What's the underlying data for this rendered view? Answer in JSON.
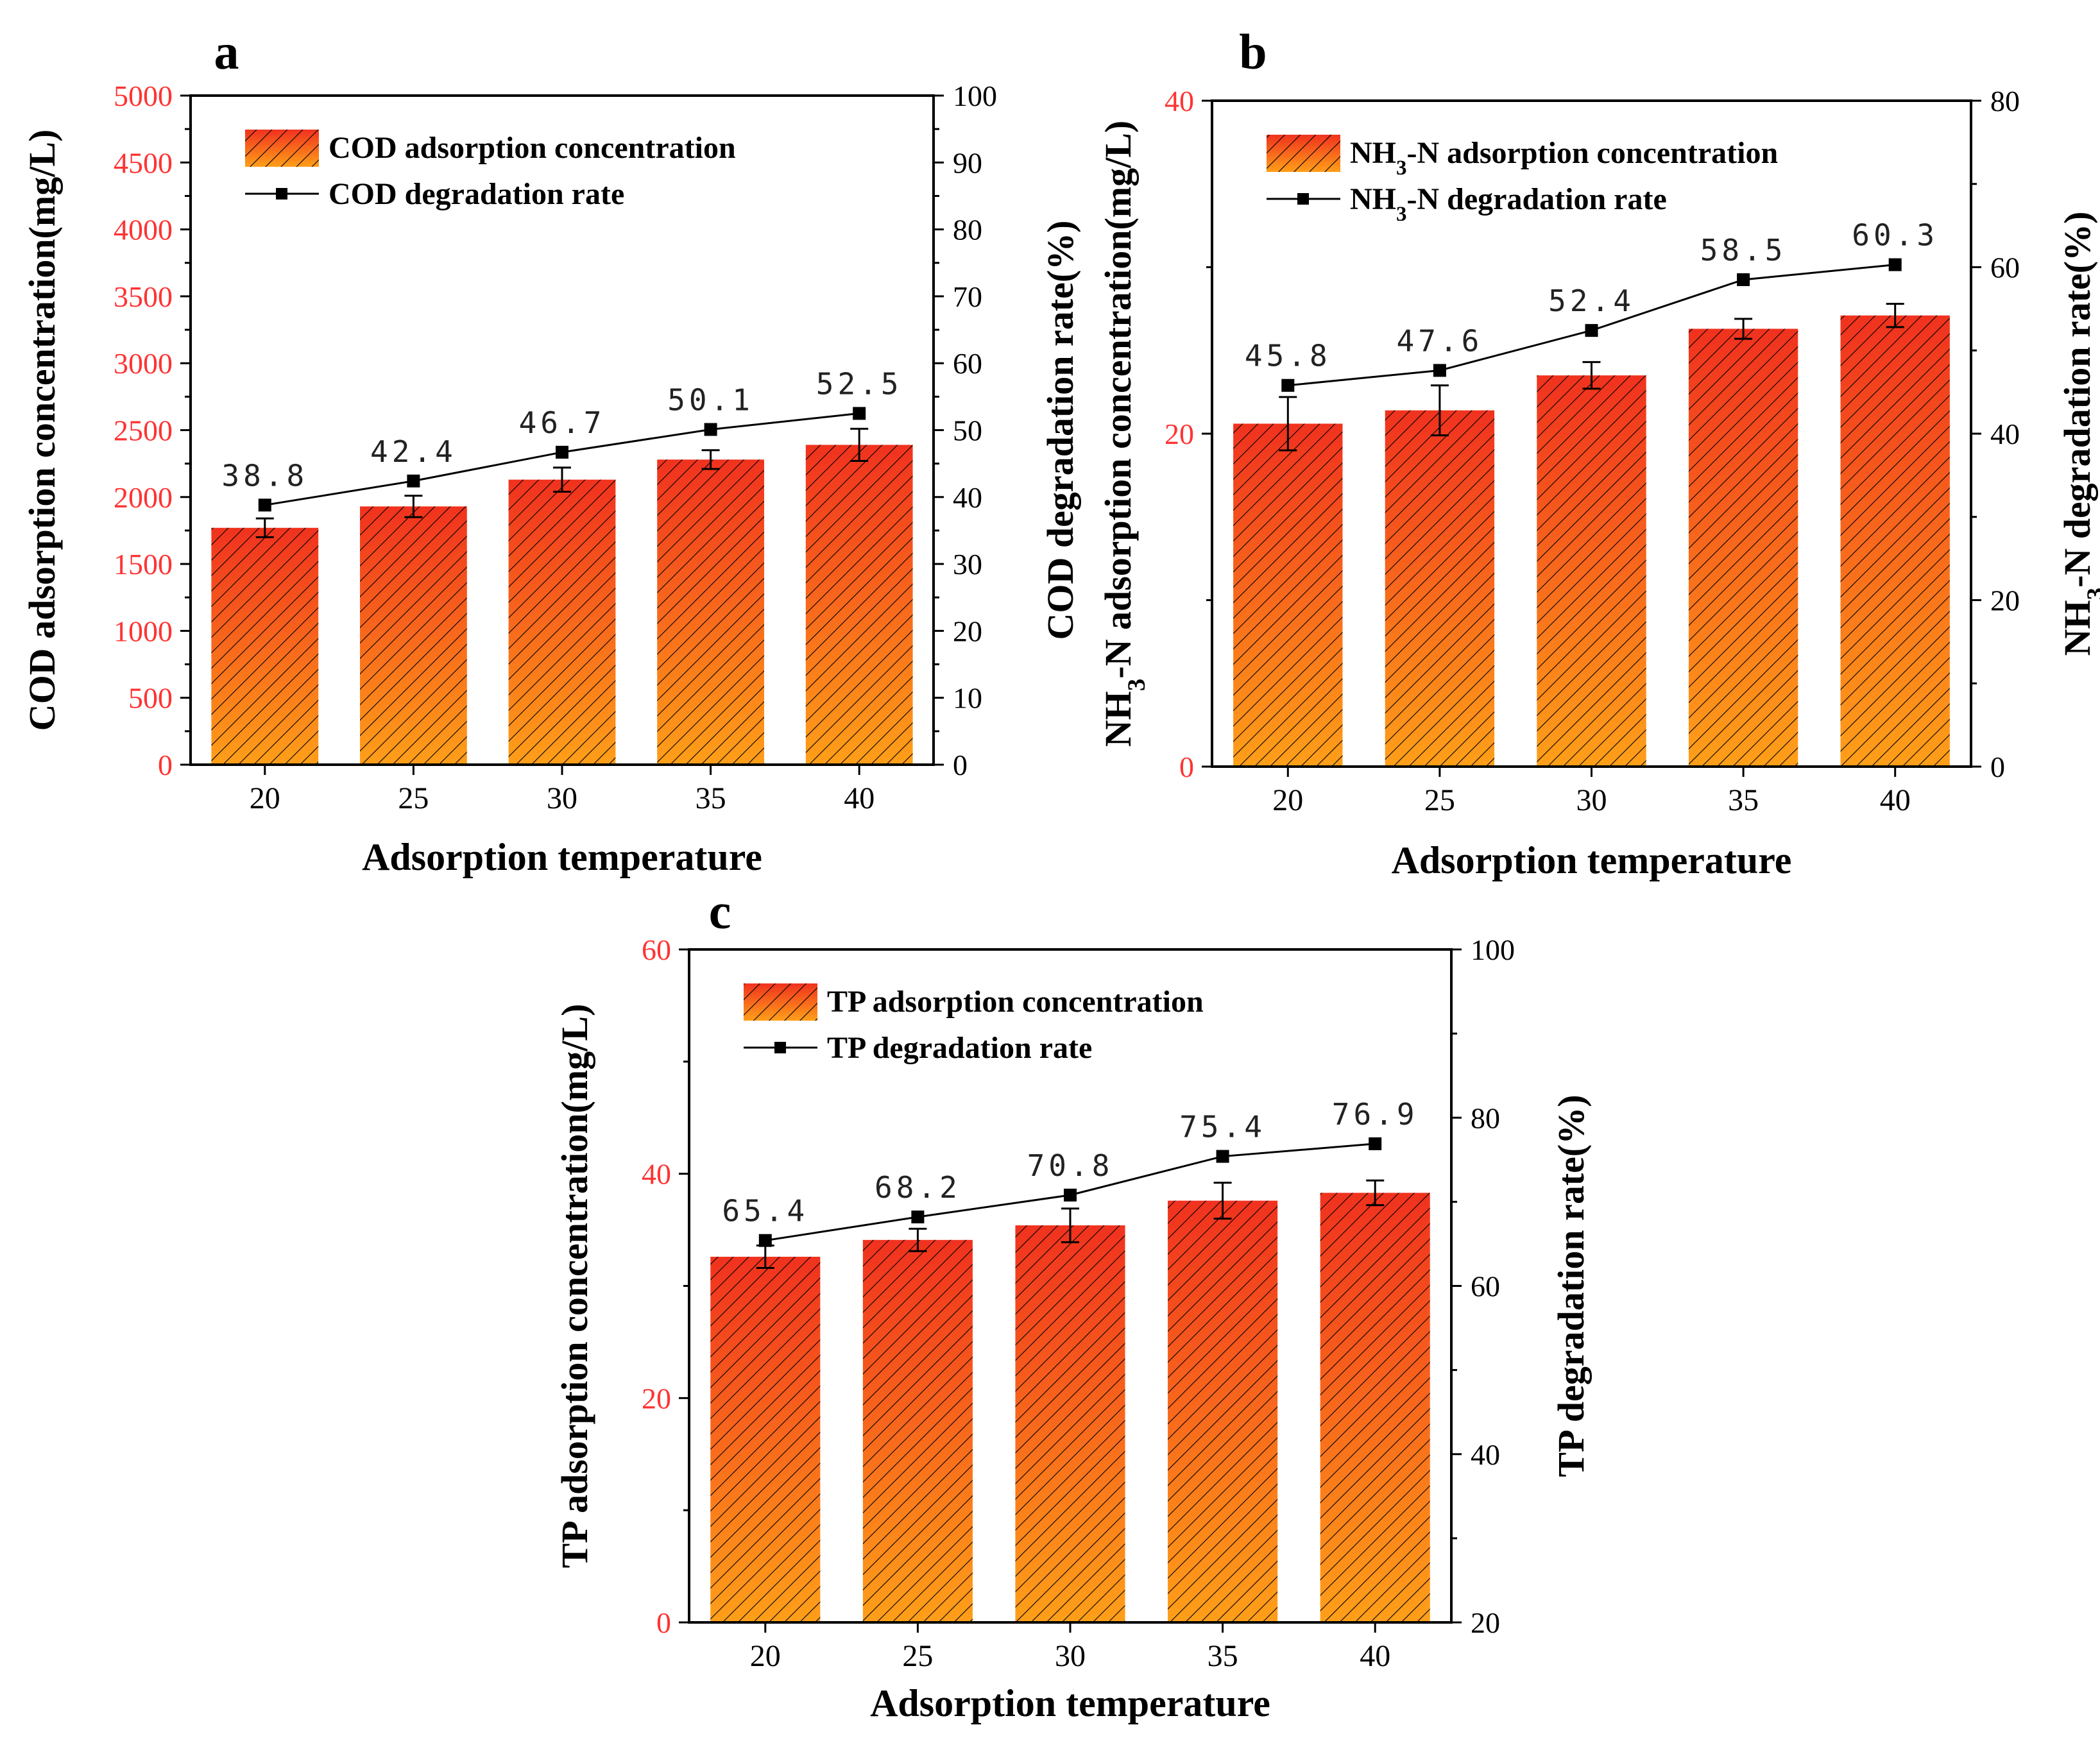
{
  "colors": {
    "bar_top": "#f0321e",
    "bar_bottom": "#ff9f19",
    "left_axis": "#ff3333",
    "axis": "#000000",
    "line": "#000000"
  },
  "chart_data": [
    {
      "type": "bar",
      "panel": "a",
      "categories": [
        "20",
        "25",
        "30",
        "35",
        "40"
      ],
      "xlabel": "Adsorption temperature",
      "ylabel_left": "COD adsorption concentration(mg/L)",
      "ylabel_right": "COD degradation rate(%)",
      "left_ylim": [
        0,
        5000
      ],
      "left_ticks": [
        0,
        500,
        1000,
        1500,
        2000,
        2500,
        3000,
        3500,
        4000,
        4500,
        5000
      ],
      "right_ylim": [
        0,
        100
      ],
      "right_ticks": [
        0,
        10,
        20,
        30,
        40,
        50,
        60,
        70,
        80,
        90,
        100
      ],
      "left_tick_color": "red",
      "bars": {
        "name": "COD adsorption concentration",
        "values": [
          1770,
          1930,
          2130,
          2280,
          2390
        ],
        "errors": [
          70,
          80,
          90,
          70,
          120
        ]
      },
      "line": {
        "name": "COD degradation rate",
        "values": [
          38.8,
          42.4,
          46.7,
          50.1,
          52.5
        ],
        "labels": [
          "38.8",
          "42.4",
          "46.7",
          "50.1",
          "52.5"
        ]
      },
      "legend": "top-left"
    },
    {
      "type": "bar",
      "panel": "b",
      "categories": [
        "20",
        "25",
        "30",
        "35",
        "40"
      ],
      "xlabel": "Adsorption temperature",
      "ylabel_left": "NH3-N adsorption concentration(mg/L)",
      "ylabel_right": "NH3-N degradation rate(%)",
      "left_ylim": [
        0,
        40
      ],
      "left_ticks": [
        0,
        20,
        40
      ],
      "right_ylim": [
        0,
        80
      ],
      "right_ticks": [
        0,
        20,
        40,
        60,
        80
      ],
      "left_tick_color": "red",
      "bars": {
        "name": "NH3-N adsorption concentration",
        "values": [
          20.6,
          21.4,
          23.5,
          26.3,
          27.1
        ],
        "errors": [
          1.6,
          1.5,
          0.8,
          0.6,
          0.7
        ]
      },
      "line": {
        "name": "NH3-N degradation rate",
        "values": [
          45.8,
          47.6,
          52.4,
          58.5,
          60.3
        ],
        "labels": [
          "45.8",
          "47.6",
          "52.4",
          "58.5",
          "60.3"
        ]
      },
      "legend": "top-left"
    },
    {
      "type": "bar",
      "panel": "c",
      "categories": [
        "20",
        "25",
        "30",
        "35",
        "40"
      ],
      "xlabel": "Adsorption temperature",
      "ylabel_left": "TP adsorption concentration(mg/L)",
      "ylabel_right": "TP degradation rate(%)",
      "left_ylim": [
        0,
        60
      ],
      "left_ticks": [
        0,
        20,
        40,
        60
      ],
      "right_ylim": [
        20,
        100
      ],
      "right_ticks": [
        20,
        40,
        60,
        80,
        100
      ],
      "left_tick_color": "red",
      "bars": {
        "name": "TP adsorption concentration",
        "values": [
          32.6,
          34.1,
          35.4,
          37.6,
          38.3
        ],
        "errors": [
          1.0,
          1.0,
          1.5,
          1.6,
          1.1
        ]
      },
      "line": {
        "name": "TP degradation rate",
        "values": [
          65.4,
          68.2,
          70.8,
          75.4,
          76.9
        ],
        "labels": [
          "65.4",
          "68.2",
          "70.8",
          "75.4",
          "76.9"
        ]
      },
      "legend": "top-left"
    }
  ]
}
